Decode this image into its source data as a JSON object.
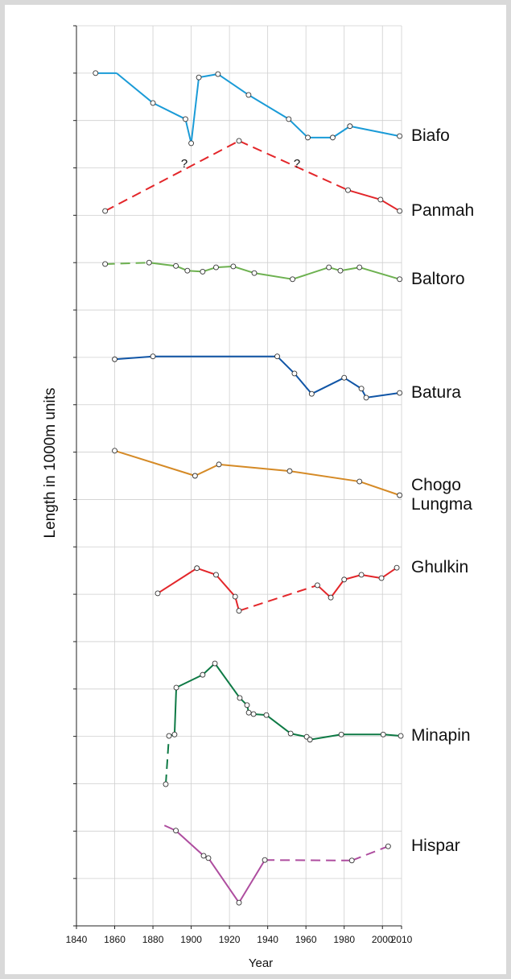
{
  "chart_data": {
    "type": "line",
    "x_label": "Year",
    "y_label": "Length in 1000m units",
    "xlim": [
      1840,
      2010
    ],
    "xticks": [
      1840,
      1860,
      1880,
      1900,
      1920,
      1940,
      1960,
      1980,
      2000,
      2010
    ],
    "ylim": [
      0,
      19
    ],
    "yticks": [
      0,
      1,
      2,
      3,
      4,
      5,
      6,
      7,
      8,
      9,
      10,
      11,
      12,
      13,
      14,
      15,
      16,
      17,
      18,
      19
    ],
    "grid": true,
    "annotations": [
      {
        "text": "?",
        "x": 1896.4,
        "y": 16.08
      },
      {
        "text": "?",
        "x": 1955.3,
        "y": 16.08
      }
    ],
    "series": [
      {
        "name": "Biafo",
        "color": "#1a9bd7",
        "x": [
          1850,
          1861,
          1880,
          1897,
          1900,
          1904,
          1914,
          1930,
          1951,
          1961,
          1974,
          1983,
          2009
        ],
        "values": [
          18.0,
          18.0,
          17.37,
          17.03,
          16.52,
          17.91,
          17.98,
          17.54,
          17.03,
          16.64,
          16.64,
          16.88,
          16.67
        ],
        "dashed_segments": [],
        "no_marker": [
          1
        ]
      },
      {
        "name": "Panmah",
        "color": "#e3262a",
        "x": [
          1855,
          1925,
          1982,
          1999,
          2009
        ],
        "values": [
          15.09,
          16.57,
          15.53,
          15.33,
          15.09
        ],
        "dashed_segments": [
          0,
          1
        ],
        "no_marker": []
      },
      {
        "name": "Baltoro",
        "color": "#6db150",
        "x": [
          1855,
          1878,
          1892,
          1898,
          1906,
          1913,
          1922,
          1933,
          1953,
          1972,
          1978,
          1988,
          2009
        ],
        "values": [
          13.97,
          14.0,
          13.93,
          13.83,
          13.81,
          13.9,
          13.92,
          13.78,
          13.65,
          13.9,
          13.83,
          13.9,
          13.65
        ],
        "dashed_segments": [
          0
        ],
        "no_marker": []
      },
      {
        "name": "Batura",
        "color": "#1055a6",
        "x": [
          1860,
          1880,
          1945,
          1954,
          1963,
          1980,
          1989,
          1991.5,
          2009
        ],
        "values": [
          11.96,
          12.02,
          12.02,
          11.66,
          11.23,
          11.57,
          11.34,
          11.15,
          11.25
        ],
        "dashed_segments": [],
        "no_marker": []
      },
      {
        "name": "Chogo Lungma",
        "color": "#d58a26",
        "x": [
          1860,
          1902,
          1914.5,
          1951.5,
          1988,
          2009
        ],
        "values": [
          10.03,
          9.5,
          9.74,
          9.6,
          9.38,
          9.09
        ],
        "dashed_segments": [],
        "no_marker": []
      },
      {
        "name": "Ghulkin",
        "color": "#e3262a",
        "x": [
          1882.5,
          1903,
          1913,
          1923,
          1925,
          1966,
          1973,
          1980,
          1989,
          1999.5,
          2007.5
        ],
        "values": [
          7.02,
          7.55,
          7.41,
          6.95,
          6.65,
          7.19,
          6.93,
          7.31,
          7.41,
          7.34,
          7.56
        ],
        "dashed_segments": [
          4
        ],
        "no_marker": []
      },
      {
        "name": "Minapin",
        "color": "#0e7a45",
        "x": [
          1886.7,
          1888.4,
          1891.3,
          1892.2,
          1906,
          1912.4,
          1925.4,
          1929.2,
          1930.1,
          1932.6,
          1939.3,
          1952,
          1960.4,
          1962.1,
          1978.5,
          2000.4,
          2009.6
        ],
        "values": [
          2.99,
          4.01,
          4.04,
          5.03,
          5.3,
          5.54,
          4.81,
          4.66,
          4.5,
          4.47,
          4.45,
          4.06,
          3.99,
          3.93,
          4.04,
          4.04,
          4.01
        ],
        "dashed_segments": [
          0
        ],
        "no_marker": []
      },
      {
        "name": "Hispar",
        "color": "#ae4d9f",
        "x": [
          1886,
          1892,
          1906.5,
          1909,
          1925,
          1938.5,
          1984,
          2003
        ],
        "values": [
          2.12,
          2.01,
          1.48,
          1.43,
          0.49,
          1.39,
          1.38,
          1.68
        ],
        "dashed_segments": [
          5,
          6
        ],
        "no_marker": [
          0
        ]
      }
    ]
  }
}
